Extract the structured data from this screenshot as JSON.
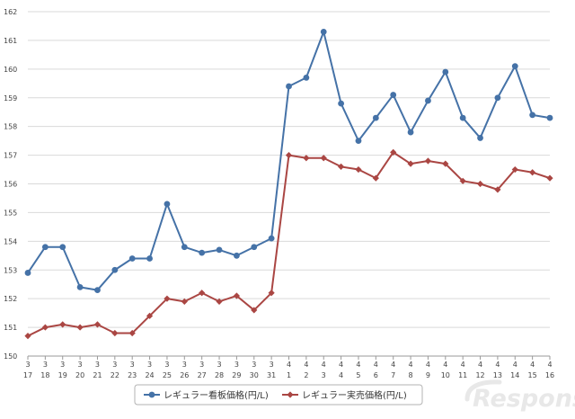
{
  "chart_data": {
    "type": "line",
    "ylim": [
      150,
      162
    ],
    "yticks": [
      150,
      151,
      152,
      153,
      154,
      155,
      156,
      157,
      158,
      159,
      160,
      161,
      162
    ],
    "grid": true,
    "legend_position": "bottom",
    "categories": [
      {
        "month": "3",
        "day": "17"
      },
      {
        "month": "3",
        "day": "18"
      },
      {
        "month": "3",
        "day": "19"
      },
      {
        "month": "3",
        "day": "20"
      },
      {
        "month": "3",
        "day": "21"
      },
      {
        "month": "3",
        "day": "22"
      },
      {
        "month": "3",
        "day": "23"
      },
      {
        "month": "3",
        "day": "24"
      },
      {
        "month": "3",
        "day": "25"
      },
      {
        "month": "3",
        "day": "26"
      },
      {
        "month": "3",
        "day": "27"
      },
      {
        "month": "3",
        "day": "28"
      },
      {
        "month": "3",
        "day": "29"
      },
      {
        "month": "3",
        "day": "30"
      },
      {
        "month": "3",
        "day": "31"
      },
      {
        "month": "4",
        "day": "1"
      },
      {
        "month": "4",
        "day": "2"
      },
      {
        "month": "4",
        "day": "3"
      },
      {
        "month": "4",
        "day": "4"
      },
      {
        "month": "4",
        "day": "5"
      },
      {
        "month": "4",
        "day": "6"
      },
      {
        "month": "4",
        "day": "7"
      },
      {
        "month": "4",
        "day": "8"
      },
      {
        "month": "4",
        "day": "9"
      },
      {
        "month": "4",
        "day": "10"
      },
      {
        "month": "4",
        "day": "11"
      },
      {
        "month": "4",
        "day": "12"
      },
      {
        "month": "4",
        "day": "13"
      },
      {
        "month": "4",
        "day": "14"
      },
      {
        "month": "4",
        "day": "15"
      },
      {
        "month": "4",
        "day": "16"
      }
    ],
    "series": [
      {
        "name": "レギュラー看板価格(円/L)",
        "color": "#4572a7",
        "marker": "circle",
        "values": [
          152.9,
          153.8,
          153.8,
          152.4,
          152.3,
          153.0,
          153.4,
          153.4,
          155.3,
          153.8,
          153.6,
          153.7,
          153.5,
          153.8,
          154.1,
          159.4,
          159.7,
          161.3,
          158.8,
          157.5,
          158.3,
          159.1,
          157.8,
          158.9,
          159.9,
          158.3,
          157.6,
          159.0,
          160.1,
          158.4,
          158.3
        ]
      },
      {
        "name": "レギュラー実売価格(円/L)",
        "color": "#aa4643",
        "marker": "diamond",
        "values": [
          150.7,
          151.0,
          151.1,
          151.0,
          151.1,
          150.8,
          150.8,
          151.4,
          152.0,
          151.9,
          152.2,
          151.9,
          152.1,
          151.6,
          152.2,
          157.0,
          156.9,
          156.9,
          156.6,
          156.5,
          156.2,
          157.1,
          156.7,
          156.8,
          156.7,
          156.1,
          156.0,
          155.8,
          156.5,
          156.4,
          156.2
        ]
      }
    ]
  },
  "watermark": {
    "text": "Response.",
    "color": "#e8e8e8"
  }
}
